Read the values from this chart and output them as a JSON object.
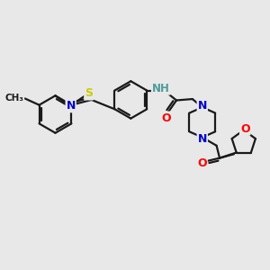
{
  "bg": "#e8e8e8",
  "bond_color": "#1a1a1a",
  "bw": 1.6,
  "dbo": 0.09,
  "atom_colors": {
    "S": "#cccc00",
    "N": "#0000cc",
    "O": "#ff0000",
    "H": "#4e9a9a",
    "C": "#1a1a1a"
  },
  "fs": 8.5,
  "xlim": [
    0,
    10
  ],
  "ylim": [
    0,
    10
  ]
}
